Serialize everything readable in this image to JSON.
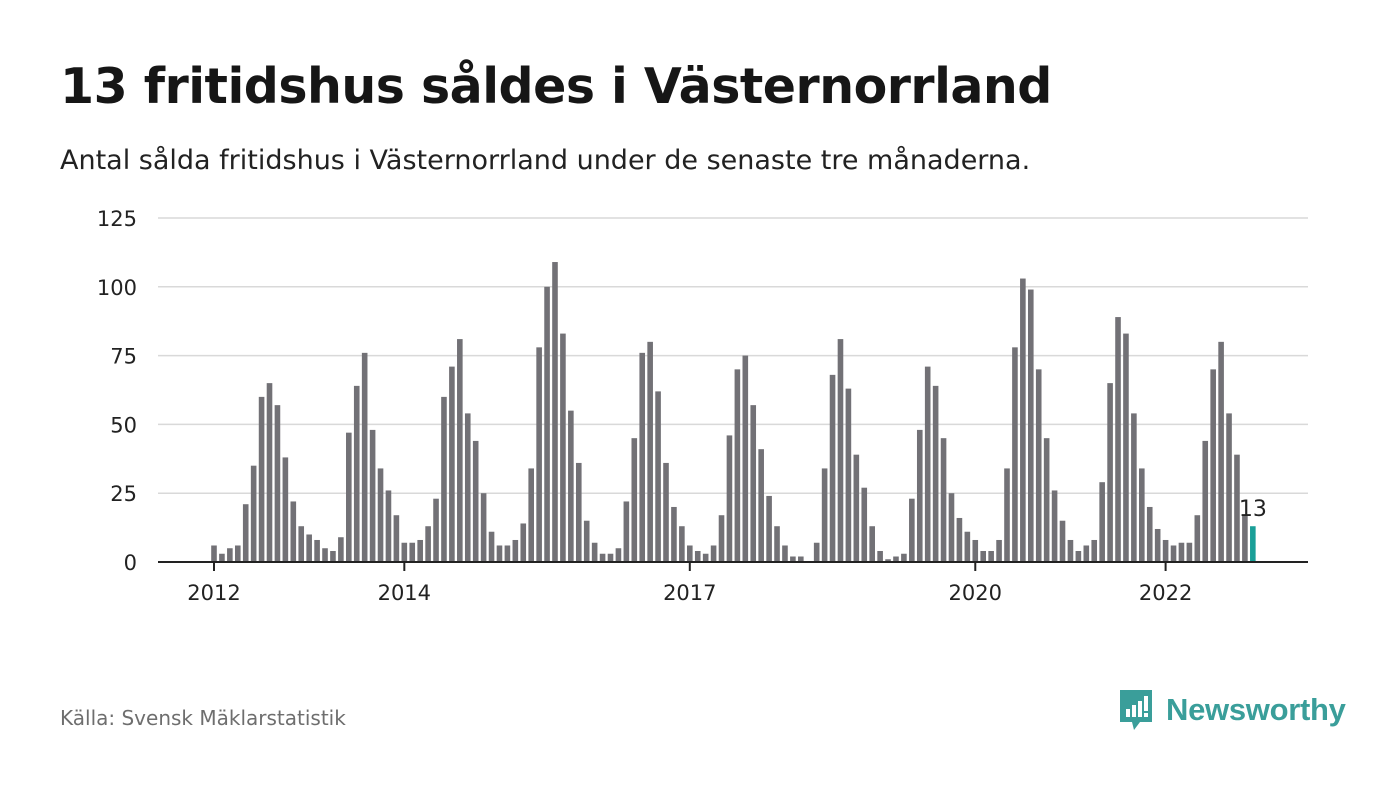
{
  "header": {
    "title": "13 fritidshus såldes i Västernorrland",
    "subtitle": "Antal sålda fritidshus i Västernorrland under de senaste tre månaderna."
  },
  "footer": {
    "source": "Källa: Svensk Mäklarstatistik",
    "brand": "Newsworthy",
    "brand_icon": "bar-chart-speech-bubble-icon"
  },
  "colors": {
    "bar": "#727176",
    "highlight": "#1a9f98",
    "grid": "#d9d9d9",
    "axis": "#222222",
    "brand": "#3a9e9a"
  },
  "chart_data": {
    "type": "bar",
    "title": "13 fritidshus såldes i Västernorrland",
    "subtitle": "Antal sålda fritidshus i Västernorrland under de senaste tre månaderna.",
    "xlabel": "",
    "ylabel": "",
    "ylim": [
      0,
      125
    ],
    "yticks": [
      0,
      25,
      50,
      75,
      100,
      125
    ],
    "grid": true,
    "x_start": "2012-01",
    "x_tick_labels": [
      {
        "label": "2012",
        "month": "2012-01"
      },
      {
        "label": "2014",
        "month": "2014-01"
      },
      {
        "label": "2017",
        "month": "2017-01"
      },
      {
        "label": "2020",
        "month": "2020-01"
      },
      {
        "label": "2022",
        "month": "2022-01"
      }
    ],
    "values": [
      6,
      3,
      5,
      6,
      21,
      35,
      60,
      65,
      57,
      38,
      22,
      13,
      10,
      8,
      5,
      4,
      9,
      47,
      64,
      76,
      48,
      34,
      26,
      17,
      7,
      7,
      8,
      13,
      23,
      60,
      71,
      81,
      54,
      44,
      25,
      11,
      6,
      6,
      8,
      14,
      34,
      78,
      100,
      109,
      83,
      55,
      36,
      15,
      7,
      3,
      3,
      5,
      22,
      45,
      76,
      80,
      62,
      36,
      20,
      13,
      6,
      4,
      3,
      6,
      17,
      46,
      70,
      75,
      57,
      41,
      24,
      13,
      6,
      2,
      2,
      0,
      7,
      34,
      68,
      81,
      63,
      39,
      27,
      13,
      4,
      1,
      2,
      3,
      23,
      48,
      71,
      64,
      45,
      25,
      16,
      11,
      8,
      4,
      4,
      8,
      34,
      78,
      103,
      99,
      70,
      45,
      26,
      15,
      8,
      4,
      6,
      8,
      29,
      65,
      89,
      83,
      54,
      34,
      20,
      12,
      8,
      6,
      7,
      7,
      17,
      44,
      70,
      80,
      54,
      39,
      17,
      13
    ],
    "highlight_last": true,
    "annotation": {
      "label": "13",
      "value": 13
    }
  }
}
